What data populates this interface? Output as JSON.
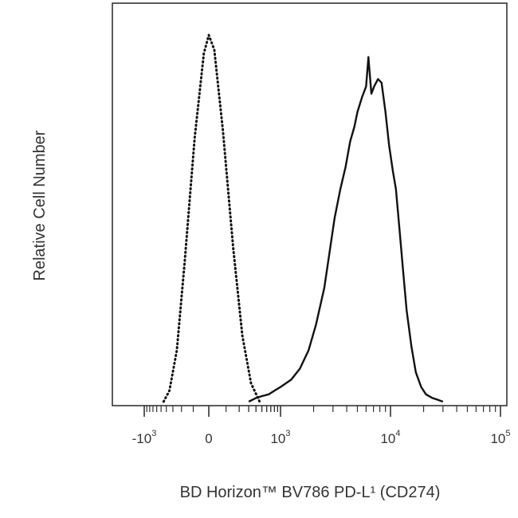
{
  "chart_data": {
    "type": "line",
    "xlabel": "BD Horizon™ BV786 PD-L¹ (CD274)",
    "ylabel": "Relative Cell Number",
    "x_scale": "biexponential",
    "xlim": [
      -2000,
      300000
    ],
    "ylim": [
      0,
      1
    ],
    "grid": false,
    "x_ticks": [
      {
        "value": -1000,
        "base": "-10",
        "exp": "3"
      },
      {
        "value": 0,
        "base": "0",
        "exp": ""
      },
      {
        "value": 1000,
        "base": "10",
        "exp": "3"
      },
      {
        "value": 10000,
        "base": "10",
        "exp": "4"
      },
      {
        "value": 100000,
        "base": "10",
        "exp": "5"
      }
    ],
    "series": [
      {
        "style": "dotted",
        "x": [
          -450,
          -350,
          -250,
          -170,
          -90,
          -30,
          0,
          30,
          80,
          150,
          230,
          330,
          460
        ],
        "y": [
          0.0,
          0.03,
          0.14,
          0.38,
          0.72,
          0.95,
          1.0,
          0.96,
          0.74,
          0.42,
          0.18,
          0.05,
          0.0
        ]
      },
      {
        "style": "solid",
        "x": [
          300,
          400,
          500,
          650,
          800,
          1000,
          1250,
          1500,
          1800,
          2100,
          2500,
          2800,
          3100,
          3500,
          3900,
          4300,
          4700,
          5000,
          5500,
          6000,
          6300,
          6700,
          7100,
          7700,
          8300,
          9000,
          9700,
          10500,
          11200,
          12000,
          13000,
          14000,
          15500,
          17000,
          19000,
          21000,
          24000,
          27000,
          30000
        ],
        "y": [
          0.0,
          0.01,
          0.015,
          0.02,
          0.03,
          0.04,
          0.06,
          0.09,
          0.14,
          0.21,
          0.31,
          0.41,
          0.5,
          0.58,
          0.64,
          0.71,
          0.75,
          0.79,
          0.83,
          0.86,
          0.94,
          0.84,
          0.86,
          0.88,
          0.87,
          0.79,
          0.7,
          0.63,
          0.58,
          0.48,
          0.36,
          0.25,
          0.15,
          0.08,
          0.04,
          0.02,
          0.01,
          0.005,
          0.0
        ]
      }
    ]
  }
}
